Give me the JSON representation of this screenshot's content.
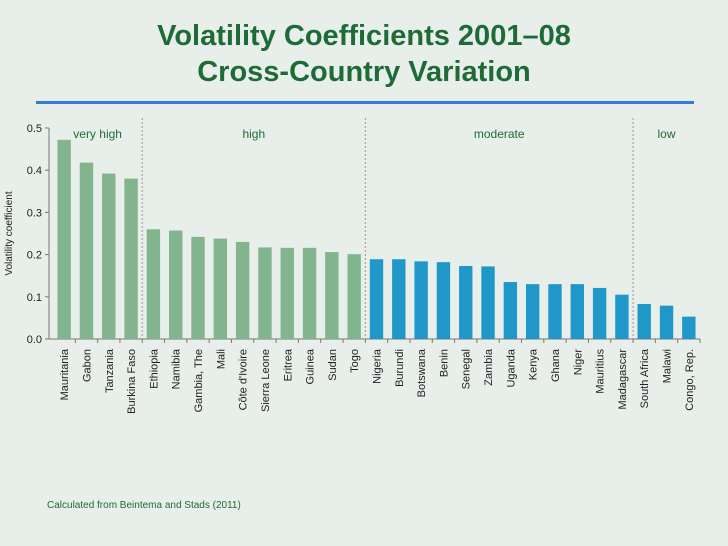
{
  "header": {
    "title_line1": "Volatility Coefficients 2001–08",
    "title_line2": "Cross-Country Variation"
  },
  "source_note": "Calculated from Beintema and Stads (2011)",
  "colors": {
    "group_high": "#82b48e",
    "group_low": "#2097c9",
    "title": "#1f6b38",
    "accent_rule": "#2f7fd6"
  },
  "chart_data": {
    "type": "bar",
    "ylabel": "Volatility coefficient",
    "ylim": [
      0,
      0.5
    ],
    "yticks": [
      "0.0",
      "0.1",
      "0.2",
      "0.3",
      "0.4",
      "0.5"
    ],
    "categories": [
      "Mauritania",
      "Gabon",
      "Tanzania",
      "Burkina Faso",
      "Ethiopia",
      "Namibia",
      "Gambia, The",
      "Mali",
      "Côte d'Ivoire",
      "Sierra Leone",
      "Eritrea",
      "Guinea",
      "Sudan",
      "Togo",
      "Nigeria",
      "Burundi",
      "Botswana",
      "Benin",
      "Senegal",
      "Zambia",
      "Uganda",
      "Kenya",
      "Ghana",
      "Niger",
      "Mauritius",
      "Madagascar",
      "South Africa",
      "Malawi",
      "Congo, Rep."
    ],
    "values": [
      0.472,
      0.418,
      0.392,
      0.38,
      0.26,
      0.257,
      0.242,
      0.238,
      0.23,
      0.217,
      0.216,
      0.216,
      0.206,
      0.201,
      0.189,
      0.189,
      0.184,
      0.182,
      0.173,
      0.172,
      0.135,
      0.13,
      0.13,
      0.13,
      0.121,
      0.105,
      0.083,
      0.079,
      0.053
    ],
    "bar_groups": [
      "green",
      "green",
      "green",
      "green",
      "green",
      "green",
      "green",
      "green",
      "green",
      "green",
      "green",
      "green",
      "green",
      "green",
      "blue",
      "blue",
      "blue",
      "blue",
      "blue",
      "blue",
      "blue",
      "blue",
      "blue",
      "blue",
      "blue",
      "blue",
      "blue",
      "blue",
      "blue"
    ],
    "sections": [
      {
        "label": "very high",
        "start": 0,
        "end": 3
      },
      {
        "label": "high",
        "start": 4,
        "end": 13
      },
      {
        "label": "moderate",
        "start": 14,
        "end": 25
      },
      {
        "label": "low",
        "start": 26,
        "end": 28
      }
    ]
  }
}
